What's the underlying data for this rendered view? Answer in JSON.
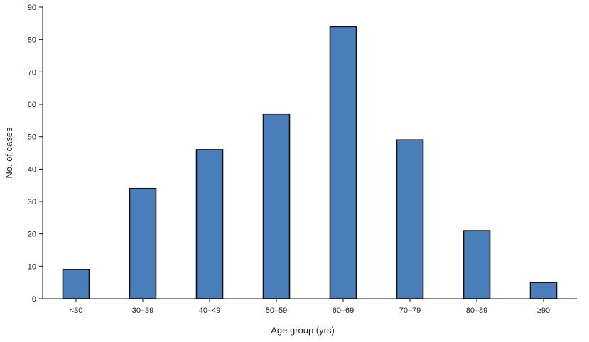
{
  "chart_data": {
    "type": "bar",
    "title": "",
    "xlabel": "Age group (yrs)",
    "ylabel": "No. of cases",
    "categories": [
      "<30",
      "30–39",
      "40–49",
      "50–59",
      "60–69",
      "70–79",
      "80–89",
      "≥90"
    ],
    "values": [
      9,
      34,
      46,
      57,
      84,
      49,
      21,
      5
    ],
    "ylim": [
      0,
      90
    ],
    "yticks": [
      0,
      10,
      20,
      30,
      40,
      50,
      60,
      70,
      80,
      90
    ],
    "grid": false,
    "legend": "none",
    "bar_color": "#4a7ebb",
    "bar_edge_color": "#111111"
  }
}
